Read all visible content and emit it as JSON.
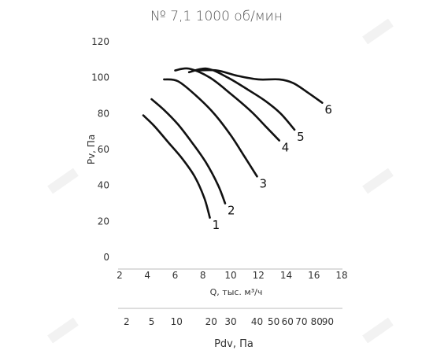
{
  "chart_data": {
    "type": "line",
    "title": "№ 7,1 1000 об/мин",
    "xlabel": "Q, тыс. м³/ч",
    "ylabel": "Pv, Па",
    "xlim": [
      2,
      18
    ],
    "ylim": [
      0,
      120
    ],
    "xticks": [
      "2",
      "4",
      "6",
      "8",
      "10",
      "12",
      "14",
      "16",
      "18"
    ],
    "yticks": [
      "0",
      "20",
      "40",
      "60",
      "80",
      "100",
      "120"
    ],
    "grid": false,
    "series": [
      {
        "name": "1",
        "x": [
          3.7,
          4.5,
          5.5,
          6.5,
          7.4,
          8.1,
          8.5
        ],
        "y": [
          79,
          73,
          64,
          55,
          45,
          33,
          22
        ]
      },
      {
        "name": "2",
        "x": [
          4.3,
          5.2,
          6.2,
          7.2,
          8.2,
          9.1,
          9.6
        ],
        "y": [
          88,
          82,
          74,
          64,
          53,
          40,
          30
        ]
      },
      {
        "name": "3",
        "x": [
          5.2,
          6.2,
          7.5,
          8.8,
          10.0,
          11.0,
          11.9
        ],
        "y": [
          99,
          98,
          90,
          80,
          68,
          56,
          45
        ]
      },
      {
        "name": "4",
        "x": [
          6.0,
          7.0,
          8.5,
          10.0,
          11.5,
          12.5,
          13.5
        ],
        "y": [
          104,
          105,
          100,
          91,
          81,
          73,
          65
        ]
      },
      {
        "name": "5",
        "x": [
          7.0,
          8.3,
          9.8,
          11.3,
          12.5,
          13.6,
          14.6
        ],
        "y": [
          103,
          105,
          100,
          93,
          87,
          80,
          71
        ]
      },
      {
        "name": "6",
        "x": [
          7.5,
          9.0,
          10.5,
          12.0,
          13.5,
          14.5,
          15.5,
          16.6
        ],
        "y": [
          104,
          104,
          101,
          99,
          99,
          97,
          92,
          86
        ]
      }
    ],
    "secondary_axis": {
      "label": "Pdv, Па",
      "ticks": [
        "2",
        "5",
        "10",
        "20",
        "30",
        "40",
        "50",
        "60",
        "70",
        "80",
        "90"
      ],
      "q_positions": [
        2.5,
        4.3,
        6.1,
        8.6,
        10.0,
        11.9,
        13.1,
        14.1,
        15.1,
        16.2,
        17.0
      ]
    }
  }
}
